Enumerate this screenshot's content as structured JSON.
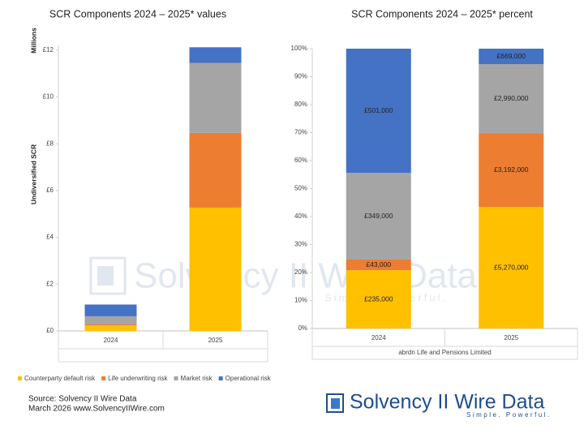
{
  "chart_data": [
    {
      "type": "bar",
      "stacked": "values",
      "title": "SCR Components 2024 – 2025* values",
      "y_label": "Undiversified SCR",
      "y_unit": "Millions",
      "categories": [
        "2024",
        "2025"
      ],
      "series": [
        {
          "name": "Counterparty default risk",
          "color": "#ffc000",
          "values": [
            0.235,
            5.27
          ]
        },
        {
          "name": "Life underwriting risk",
          "color": "#ed7d31",
          "values": [
            0.043,
            3.192
          ]
        },
        {
          "name": "Market risk",
          "color": "#a5a5a5",
          "values": [
            0.349,
            2.99
          ]
        },
        {
          "name": "Operational risk",
          "color": "#4472c4",
          "values": [
            0.501,
            0.669
          ]
        }
      ],
      "ylim": [
        0,
        12.2
      ],
      "yticks": [
        {
          "value": 0,
          "label": "£0"
        },
        {
          "value": 2,
          "label": "£2"
        },
        {
          "value": 4,
          "label": "£4"
        },
        {
          "value": 6,
          "label": "£6"
        },
        {
          "value": 8,
          "label": "£8"
        },
        {
          "value": 10,
          "label": "£10"
        },
        {
          "value": 12,
          "label": "£12"
        }
      ],
      "grid": false,
      "legend": "bottom"
    },
    {
      "type": "bar",
      "stacked": "percent",
      "title": "SCR Components 2024 – 2025* percent",
      "categories": [
        "2024",
        "2025"
      ],
      "x_group_label": "abrdn Life and Pensions Limited",
      "series": [
        {
          "color": "#ffc000",
          "values": [
            235000,
            5270000
          ],
          "value_labels": [
            "£235,000",
            "£5,270,000"
          ]
        },
        {
          "color": "#ed7d31",
          "values": [
            43000,
            3192000
          ],
          "value_labels": [
            "£43,000",
            "£3,192,000"
          ]
        },
        {
          "color": "#a5a5a5",
          "values": [
            349000,
            2990000
          ],
          "value_labels": [
            "£349,000",
            "£2,990,000"
          ]
        },
        {
          "color": "#4472c4",
          "values": [
            501000,
            669000
          ],
          "value_labels": [
            "£501,000",
            "£669,000"
          ]
        }
      ],
      "ylim": [
        0,
        100
      ],
      "yticks": [
        {
          "value": 0,
          "label": "0%"
        },
        {
          "value": 10,
          "label": "10%"
        },
        {
          "value": 20,
          "label": "20%"
        },
        {
          "value": 30,
          "label": "30%"
        },
        {
          "value": 40,
          "label": "40%"
        },
        {
          "value": 50,
          "label": "50%"
        },
        {
          "value": 60,
          "label": "60%"
        },
        {
          "value": 70,
          "label": "70%"
        },
        {
          "value": 80,
          "label": "80%"
        },
        {
          "value": 90,
          "label": "90%"
        },
        {
          "value": 100,
          "label": "100%"
        }
      ],
      "grid": false
    }
  ],
  "footer": {
    "source": "Source: Solvency II Wire Data",
    "date": "March 2026 www.SolvencyIIWire.com"
  },
  "logo": {
    "title": "Solvency II Wire Data",
    "tagline": "Simple. Powerful."
  }
}
